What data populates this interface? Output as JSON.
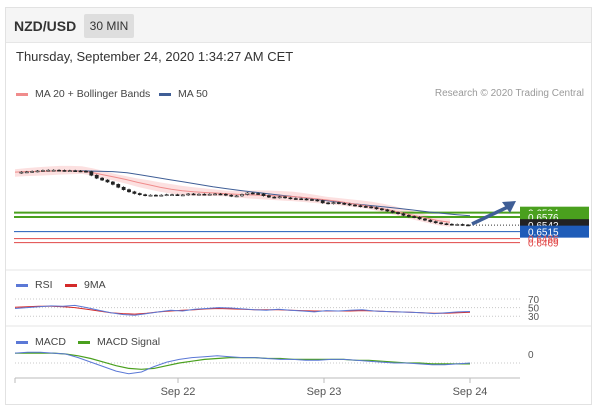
{
  "header": {
    "pair": "NZD/USD",
    "timeframe": "30 MIN",
    "datetime": "Thursday, September 24, 2020 1:34:27 AM CET"
  },
  "legend": {
    "ma20": "MA 20 + Bollinger Bands",
    "ma50": "MA 50",
    "rsi": "RSI",
    "rsi_ma": "9MA",
    "macd": "MACD",
    "macd_signal": "MACD Signal"
  },
  "credit": "Research © 2020 Trading Central",
  "colors": {
    "ma20": "#f08c8c",
    "ma50": "#3f5e96",
    "band": "#fbd5d5",
    "support_resistance": "#4aa01e",
    "blue_line": "#1f5cb8",
    "red_line": "#e04646",
    "rsi_line": "#5b78d6",
    "rsi_ma_line": "#d42a2a",
    "macd_line": "#5b78d6",
    "signal_line": "#4aa01e"
  },
  "chart_data": {
    "type": "line",
    "x_labels": [
      "Sep 22",
      "Sep 23",
      "Sep 24"
    ],
    "price": {
      "ylim": [
        0.6447,
        0.679
      ],
      "series": [
        0.676,
        0.6763,
        0.6764,
        0.6766,
        0.6768,
        0.677,
        0.6771,
        0.6771,
        0.677,
        0.6769,
        0.6769,
        0.6768,
        0.6767,
        0.6765,
        0.675,
        0.6738,
        0.673,
        0.6722,
        0.6712,
        0.67,
        0.669,
        0.6681,
        0.6674,
        0.6669,
        0.6666,
        0.6667,
        0.6666,
        0.6667,
        0.6669,
        0.6669,
        0.6668,
        0.6668,
        0.6672,
        0.6671,
        0.6671,
        0.667,
        0.6671,
        0.6672,
        0.6671,
        0.6667,
        0.6663,
        0.6664,
        0.667,
        0.6676,
        0.6674,
        0.6672,
        0.6665,
        0.6659,
        0.6657,
        0.666,
        0.6656,
        0.6653,
        0.6652,
        0.6651,
        0.6649,
        0.6647,
        0.6644,
        0.6635,
        0.6632,
        0.6636,
        0.6633,
        0.663,
        0.6626,
        0.6623,
        0.662,
        0.6618,
        0.6615,
        0.661,
        0.6606,
        0.6601,
        0.6595,
        0.659,
        0.6583,
        0.6578,
        0.6575,
        0.6568,
        0.6563,
        0.6557,
        0.6552,
        0.6548,
        0.6546,
        0.6544,
        0.6545,
        0.6543,
        0.6542
      ],
      "ma20": [
        0.6763,
        0.6765,
        0.6766,
        0.6767,
        0.6768,
        0.6768,
        0.6767,
        0.676,
        0.6751,
        0.6742,
        0.6732,
        0.672,
        0.671,
        0.67,
        0.6692,
        0.6685,
        0.6681,
        0.6678,
        0.6676,
        0.6673,
        0.667,
        0.6668,
        0.6667,
        0.6665,
        0.6663,
        0.6661,
        0.6657,
        0.6652,
        0.6647,
        0.6641,
        0.6633,
        0.6626,
        0.6619,
        0.661,
        0.6601,
        0.659,
        0.658,
        0.657,
        0.656,
        0.6554
      ],
      "ma50": [
        0.6768,
        0.6768,
        0.6767,
        0.6765,
        0.676,
        0.6751,
        0.6741,
        0.6731,
        0.6722,
        0.6712,
        0.6702,
        0.6694,
        0.6686,
        0.6679,
        0.6672,
        0.6665,
        0.6659,
        0.6652,
        0.6644,
        0.6637,
        0.663,
        0.6624,
        0.6618,
        0.6612,
        0.6605,
        0.6598,
        0.6592,
        0.6586,
        0.6581
      ],
      "levels": [
        {
          "value": 0.6594,
          "label": "0.6594",
          "kind": "resistance"
        },
        {
          "value": 0.6576,
          "label": "0.6576",
          "kind": "resistance"
        },
        {
          "value": 0.6542,
          "label": "0.6542",
          "kind": "current"
        },
        {
          "value": 0.6515,
          "label": "0.6515",
          "kind": "support"
        },
        {
          "value": 0.6486,
          "label": "0.6486",
          "kind": "red"
        },
        {
          "value": 0.6469,
          "label": "0.6469",
          "kind": "red"
        }
      ]
    },
    "rsi": {
      "ylim": [
        20,
        80
      ],
      "tick_labels": [
        "70",
        "50",
        "30"
      ],
      "tick_values": [
        70,
        50,
        30
      ],
      "rsi": [
        48,
        50,
        52,
        54,
        53,
        55,
        50,
        44,
        38,
        34,
        32,
        36,
        40,
        44,
        42,
        46,
        48,
        50,
        49,
        47,
        45,
        44,
        46,
        44,
        42,
        40,
        43,
        42,
        44,
        45,
        42,
        41,
        40,
        39,
        38,
        36,
        38,
        40,
        41
      ],
      "ma9": [
        51,
        52,
        53,
        53,
        52,
        50,
        46,
        42,
        38,
        36,
        35,
        37,
        40,
        42,
        44,
        45,
        47,
        48,
        47,
        46,
        45,
        45,
        45,
        44,
        43,
        42,
        42,
        42,
        42,
        43,
        42,
        41,
        40,
        39,
        38,
        37,
        37,
        38,
        39
      ]
    },
    "macd": {
      "ylim": [
        -0.003,
        0.0012
      ],
      "tick_labels": [
        "0"
      ],
      "tick_values": [
        0
      ],
      "macd": [
        0.0001,
        0.0002,
        0.0002,
        0.0001,
        0.0,
        -0.0004,
        -0.0009,
        -0.0014,
        -0.0019,
        -0.0022,
        -0.002,
        -0.0014,
        -0.0009,
        -0.0006,
        -0.0004,
        -0.0003,
        -0.0002,
        -0.0003,
        -0.0004,
        -0.0004,
        -0.0005,
        -0.0006,
        -0.0006,
        -0.0007,
        -0.0007,
        -0.0006,
        -0.0006,
        -0.0007,
        -0.0008,
        -0.0009,
        -0.001,
        -0.001,
        -0.0011,
        -0.0012,
        -0.0012,
        -0.0011,
        -0.001
      ],
      "signal": [
        0.0001,
        0.0001,
        0.0001,
        0.0001,
        0.0,
        -0.0002,
        -0.0005,
        -0.0009,
        -0.0013,
        -0.0016,
        -0.0017,
        -0.0016,
        -0.0013,
        -0.001,
        -0.0008,
        -0.0006,
        -0.0005,
        -0.0004,
        -0.0004,
        -0.0004,
        -0.0005,
        -0.0005,
        -0.0006,
        -0.0006,
        -0.0006,
        -0.0006,
        -0.0006,
        -0.0007,
        -0.0007,
        -0.0008,
        -0.0009,
        -0.001,
        -0.001,
        -0.0011,
        -0.0011,
        -0.0011,
        -0.0011
      ]
    }
  }
}
